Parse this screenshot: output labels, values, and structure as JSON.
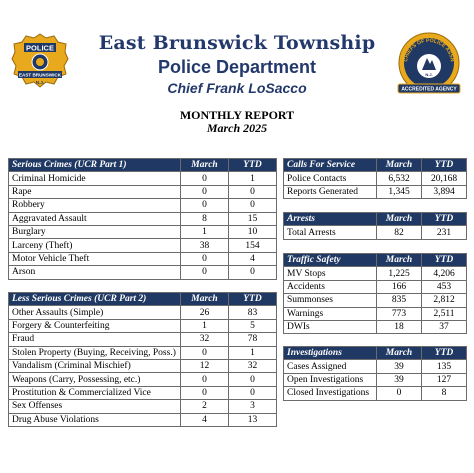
{
  "header": {
    "township": "East Brunswick Township",
    "department": "Police Department",
    "chief": "Chief Frank LoSacco",
    "badge": {
      "top": "POLICE",
      "middle": "EAST BRUNSWICK",
      "bottom": "N.J."
    },
    "seal": {
      "ring": "CHIEFS OF POLICE ASSN",
      "center": "N.J.",
      "ribbon": "ACCREDITED AGENCY"
    },
    "colors": {
      "navy": "#1f3864",
      "title": "#23386b",
      "gold": "#e8a91c"
    }
  },
  "report": {
    "title": "MONTHLY REPORT",
    "date": "March 2025"
  },
  "serious": {
    "label": "Serious Crimes (UCR Part 1)",
    "cols": [
      "March",
      "YTD"
    ],
    "rows": [
      {
        "name": "Criminal Homicide",
        "march": "0",
        "ytd": "1"
      },
      {
        "name": "Rape",
        "march": "0",
        "ytd": "0"
      },
      {
        "name": "Robbery",
        "march": "0",
        "ytd": "0"
      },
      {
        "name": "Aggravated Assault",
        "march": "8",
        "ytd": "15"
      },
      {
        "name": "Burglary",
        "march": "1",
        "ytd": "10"
      },
      {
        "name": "Larceny (Theft)",
        "march": "38",
        "ytd": "154"
      },
      {
        "name": "Motor Vehicle Theft",
        "march": "0",
        "ytd": "4"
      },
      {
        "name": "Arson",
        "march": "0",
        "ytd": "0"
      }
    ]
  },
  "less": {
    "label": "Less Serious Crimes (UCR Part 2)",
    "cols": [
      "March",
      "YTD"
    ],
    "rows": [
      {
        "name": "Other Assaults (Simple)",
        "march": "26",
        "ytd": "83"
      },
      {
        "name": "Forgery & Counterfeiting",
        "march": "1",
        "ytd": "5"
      },
      {
        "name": "Fraud",
        "march": "32",
        "ytd": "78"
      },
      {
        "name": "Stolen Property (Buying, Receiving, Poss.)",
        "march": "0",
        "ytd": "1"
      },
      {
        "name": "Vandalism (Criminal Mischief)",
        "march": "12",
        "ytd": "32"
      },
      {
        "name": "Weapons (Carry, Possessing, etc.)",
        "march": "0",
        "ytd": "0"
      },
      {
        "name": "Prostitution & Commercialized Vice",
        "march": "0",
        "ytd": "0"
      },
      {
        "name": "Sex Offenses",
        "march": "2",
        "ytd": "3"
      },
      {
        "name": "Drug Abuse Violations",
        "march": "4",
        "ytd": "13"
      }
    ]
  },
  "calls": {
    "label": "Calls For Service",
    "cols": [
      "March",
      "YTD"
    ],
    "rows": [
      {
        "name": "Police Contacts",
        "march": "6,532",
        "ytd": "20,168"
      },
      {
        "name": "Reports Generated",
        "march": "1,345",
        "ytd": "3,894"
      }
    ]
  },
  "arrests": {
    "label": "Arrests",
    "cols": [
      "March",
      "YTD"
    ],
    "rows": [
      {
        "name": "Total Arrests",
        "march": "82",
        "ytd": "231"
      }
    ]
  },
  "traffic": {
    "label": "Traffic Safety",
    "cols": [
      "March",
      "YTD"
    ],
    "rows": [
      {
        "name": "MV Stops",
        "march": "1,225",
        "ytd": "4,206"
      },
      {
        "name": "Accidents",
        "march": "166",
        "ytd": "453"
      },
      {
        "name": "Summonses",
        "march": "835",
        "ytd": "2,812"
      },
      {
        "name": "Warnings",
        "march": "773",
        "ytd": "2,511"
      },
      {
        "name": "DWIs",
        "march": "18",
        "ytd": "37"
      }
    ]
  },
  "invest": {
    "label": "Investigations",
    "cols": [
      "March",
      "YTD"
    ],
    "rows": [
      {
        "name": "Cases Assigned",
        "march": "39",
        "ytd": "135"
      },
      {
        "name": "Open Investigations",
        "march": "39",
        "ytd": "127"
      },
      {
        "name": "Closed Investigations",
        "march": "0",
        "ytd": "8"
      }
    ]
  }
}
